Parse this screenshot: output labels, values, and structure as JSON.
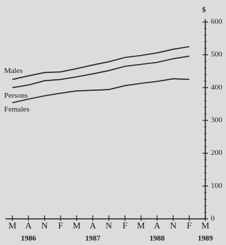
{
  "chart_data": {
    "type": "line",
    "y_unit": "$",
    "categories": [
      "M",
      "A",
      "N",
      "F",
      "M",
      "A",
      "N",
      "F",
      "M",
      "A",
      "N",
      "F",
      "M"
    ],
    "years": [
      "1986",
      "1987",
      "1988",
      "1989"
    ],
    "series": [
      {
        "name": "Males",
        "color": "#222222",
        "values": [
          425,
          436,
          446,
          448,
          458,
          469,
          479,
          492,
          498,
          506,
          517,
          525,
          null
        ]
      },
      {
        "name": "Persons",
        "color": "#222222",
        "values": [
          400,
          408,
          421,
          425,
          433,
          442,
          452,
          465,
          471,
          477,
          488,
          496,
          null
        ]
      },
      {
        "name": "Females",
        "color": "#222222",
        "values": [
          354,
          365,
          375,
          383,
          390,
          392,
          394,
          406,
          413,
          419,
          427,
          425,
          null
        ]
      }
    ],
    "ylim": [
      0,
      600
    ],
    "yticks": [
      0,
      100,
      200,
      300,
      400,
      500,
      600
    ]
  }
}
